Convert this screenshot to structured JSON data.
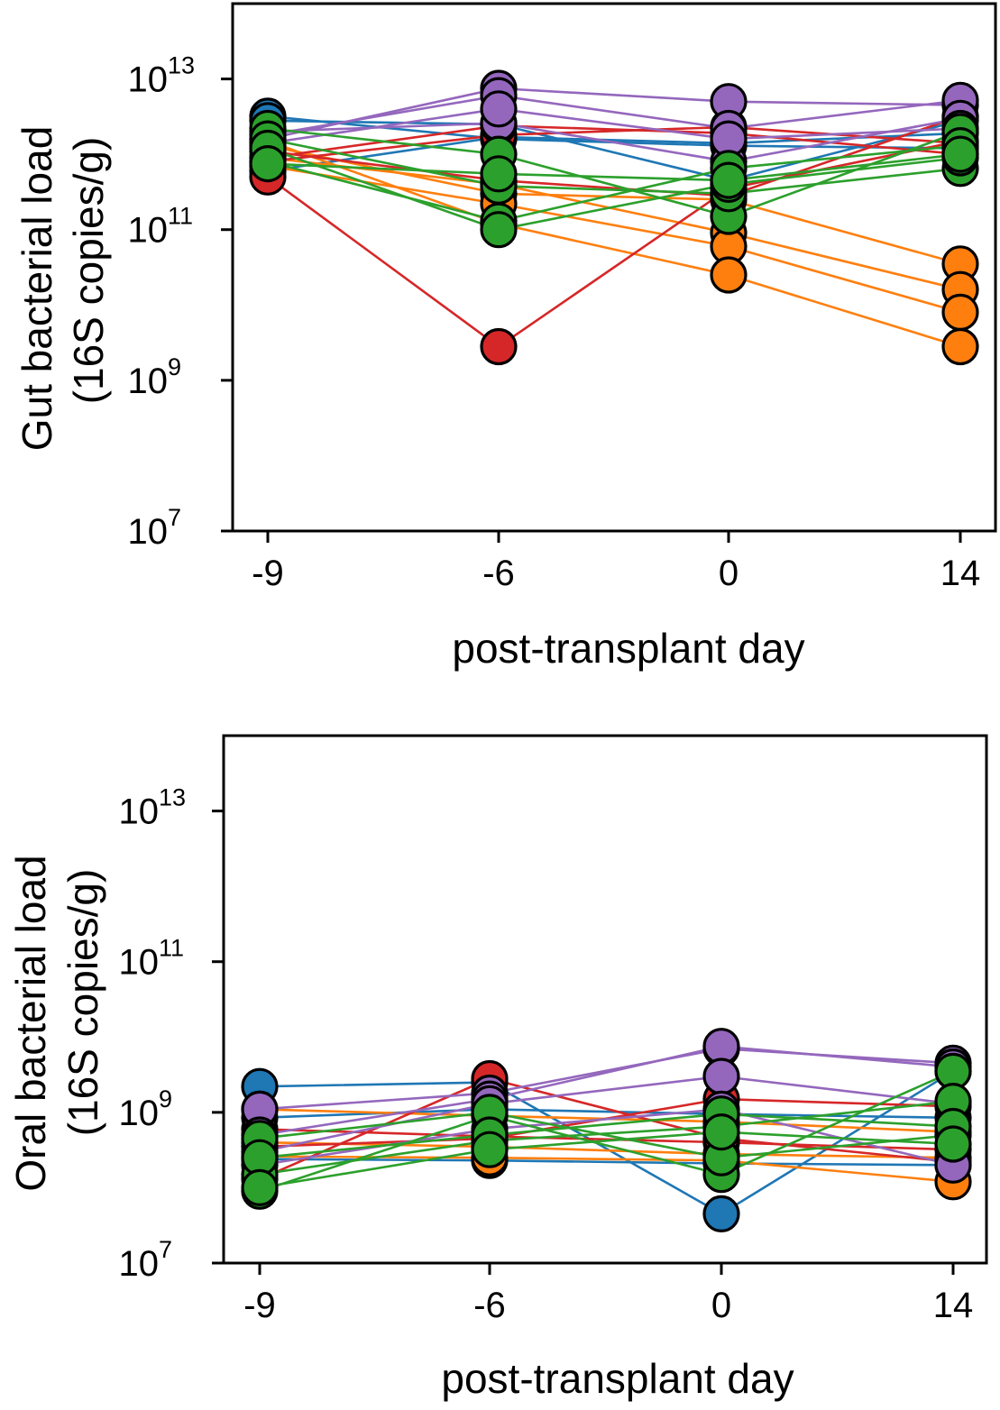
{
  "colors": {
    "blue": "#1f77b4",
    "orange": "#ff7f0e",
    "green": "#2ca02c",
    "red": "#d62728",
    "purple": "#9467bd"
  },
  "chart_data": [
    {
      "type": "line",
      "xlabel": "post-transplant day",
      "ylabel_line1": "Gut bacterial load",
      "ylabel_line2": "(16S copies/g)",
      "yscale": "log",
      "ylim_exp": [
        7,
        14
      ],
      "ytick_base": "10",
      "yticks_exp": [
        "7",
        "9",
        "11",
        "13"
      ],
      "x": [
        "-9",
        "-6",
        "0",
        "14"
      ],
      "grid": false,
      "series": [
        {
          "color": "blue",
          "values": [
            3200000000000.0,
            1600000000000.0,
            1300000000000.0,
            1200000000000.0
          ]
        },
        {
          "color": "blue",
          "values": [
            2800000000000.0,
            2500000000000.0,
            450000000000.0,
            2800000000000.0
          ]
        },
        {
          "color": "blue",
          "values": [
            600000000000.0,
            1700000000000.0,
            1400000000000.0,
            1900000000000.0
          ]
        },
        {
          "color": "orange",
          "values": [
            1300000000000.0,
            300000000000.0,
            250000000000.0,
            35000000000.0
          ]
        },
        {
          "color": "orange",
          "values": [
            900000000000.0,
            400000000000.0,
            90000000000.0,
            16000000000.0
          ]
        },
        {
          "color": "orange",
          "values": [
            700000000000.0,
            220000000000.0,
            60000000000.0,
            8000000000.0
          ]
        },
        {
          "color": "orange",
          "values": [
            1500000000000.0,
            120000000000.0,
            25000000000.0,
            2800000000.0
          ]
        },
        {
          "color": "red",
          "values": [
            500000000000.0,
            2800000000.0,
            350000000000.0,
            1500000000000.0
          ]
        },
        {
          "color": "red",
          "values": [
            800000000000.0,
            1800000000000.0,
            2300000000000.0,
            1400000000000.0
          ]
        },
        {
          "color": "red",
          "values": [
            1100000000000.0,
            450000000000.0,
            280000000000.0,
            3200000000000.0
          ]
        },
        {
          "color": "red",
          "values": [
            900000000000.0,
            2400000000000.0,
            1900000000000.0,
            1000000000000.0
          ]
        },
        {
          "color": "purple",
          "values": [
            1600000000000.0,
            7500000000000.0,
            5000000000000.0,
            4500000000000.0
          ]
        },
        {
          "color": "purple",
          "values": [
            1800000000000.0,
            6000000000000.0,
            2200000000000.0,
            5200000000000.0
          ]
        },
        {
          "color": "purple",
          "values": [
            2000000000000.0,
            2600000000000.0,
            800000000000.0,
            3000000000000.0
          ]
        },
        {
          "color": "purple",
          "values": [
            1400000000000.0,
            4000000000000.0,
            1600000000000.0,
            2200000000000.0
          ]
        },
        {
          "color": "green",
          "values": [
            2200000000000.0,
            1000000000000.0,
            150000000000.0,
            2000000000000.0
          ]
        },
        {
          "color": "green",
          "values": [
            1600000000000.0,
            380000000000.0,
            300000000000.0,
            650000000000.0
          ]
        },
        {
          "color": "green",
          "values": [
            800000000000.0,
            130000000000.0,
            650000000000.0,
            1300000000000.0
          ]
        },
        {
          "color": "green",
          "values": [
            1200000000000.0,
            100000000000.0,
            400000000000.0,
            900000000000.0
          ]
        },
        {
          "color": "green",
          "values": [
            750000000000.0,
            550000000000.0,
            450000000000.0,
            1000000000000.0
          ]
        }
      ]
    },
    {
      "type": "line",
      "xlabel": "post-transplant day",
      "ylabel_line1": "Oral bacterial load",
      "ylabel_line2": "(16S copies/g)",
      "yscale": "log",
      "ylim_exp": [
        7,
        14
      ],
      "ytick_base": "10",
      "yticks_exp": [
        "7",
        "9",
        "11",
        "13"
      ],
      "x": [
        "-9",
        "-6",
        "0",
        "14"
      ],
      "grid": false,
      "series": [
        {
          "color": "blue",
          "values": [
            2200000000.0,
            2500000000.0,
            45000000.0,
            3500000000.0
          ]
        },
        {
          "color": "blue",
          "values": [
            850000000.0,
            1100000000.0,
            950000000.0,
            850000000.0
          ]
        },
        {
          "color": "blue",
          "values": [
            240000000.0,
            230000000.0,
            210000000.0,
            200000000.0
          ]
        },
        {
          "color": "orange",
          "values": [
            1100000000.0,
            900000000.0,
            750000000.0,
            550000000.0
          ]
        },
        {
          "color": "orange",
          "values": [
            400000000.0,
            350000000.0,
            280000000.0,
            250000000.0
          ]
        },
        {
          "color": "orange",
          "values": [
            260000000.0,
            250000000.0,
            230000000.0,
            120000000.0
          ]
        },
        {
          "color": "red",
          "values": [
            600000000.0,
            480000000.0,
            400000000.0,
            320000000.0
          ]
        },
        {
          "color": "red",
          "values": [
            130000000.0,
            2800000000.0,
            450000000.0,
            220000000.0
          ]
        },
        {
          "color": "red",
          "values": [
            350000000.0,
            450000000.0,
            1500000000.0,
            1200000000.0
          ]
        },
        {
          "color": "purple",
          "values": [
            1100000000.0,
            1800000000.0,
            7000000000.0,
            4500000000.0
          ]
        },
        {
          "color": "purple",
          "values": [
            500000000.0,
            1500000000.0,
            7500000000.0,
            4000000000.0
          ]
        },
        {
          "color": "purple",
          "values": [
            300000000.0,
            1300000000.0,
            3000000000.0,
            1300000000.0
          ]
        },
        {
          "color": "purple",
          "values": [
            200000000.0,
            600000000.0,
            1100000000.0,
            200000000.0
          ]
        },
        {
          "color": "green",
          "values": [
            90000000.0,
            900000000.0,
            150000000.0,
            3500000000.0
          ]
        },
        {
          "color": "green",
          "values": [
            150000000.0,
            420000000.0,
            650000000.0,
            1400000000.0
          ]
        },
        {
          "color": "green",
          "values": [
            450000000.0,
            1000000000.0,
            250000000.0,
            500000000.0
          ]
        },
        {
          "color": "green",
          "values": [
            250000000.0,
            500000000.0,
            950000000.0,
            650000000.0
          ]
        },
        {
          "color": "green",
          "values": [
            100000000.0,
            320000000.0,
            550000000.0,
            380000000.0
          ]
        }
      ]
    }
  ]
}
